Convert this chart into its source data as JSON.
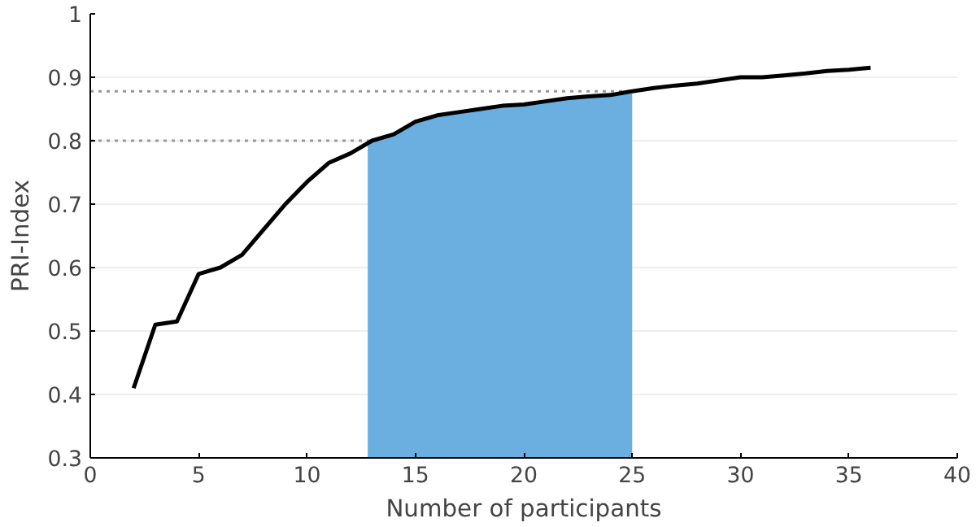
{
  "chart_data": {
    "type": "line",
    "xlabel": "Number of participants",
    "ylabel": "PRI-Index",
    "x": [
      2,
      3,
      4,
      5,
      6,
      7,
      8,
      9,
      10,
      11,
      12,
      13,
      14,
      15,
      16,
      17,
      18,
      19,
      20,
      21,
      22,
      23,
      24,
      25,
      26,
      27,
      28,
      29,
      30,
      31,
      32,
      33,
      34,
      35,
      36
    ],
    "series": [
      {
        "color": "#000000",
        "values": [
          0.41,
          0.51,
          0.515,
          0.59,
          0.6,
          0.62,
          0.66,
          0.7,
          0.735,
          0.765,
          0.78,
          0.8,
          0.81,
          0.83,
          0.84,
          0.845,
          0.85,
          0.855,
          0.857,
          0.862,
          0.867,
          0.87,
          0.872,
          0.878,
          0.883,
          0.887,
          0.89,
          0.895,
          0.9,
          0.9,
          0.903,
          0.906,
          0.91,
          0.912,
          0.915
        ]
      }
    ],
    "xlim": [
      0,
      40
    ],
    "ylim": [
      0.3,
      1
    ],
    "xticks": [
      0,
      5,
      10,
      15,
      20,
      25,
      30,
      35,
      40
    ],
    "yticks": [
      0.3,
      0.4,
      0.5,
      0.6,
      0.7,
      0.8,
      0.9,
      1
    ],
    "grid": "y",
    "marker": "none",
    "line_style": "solid",
    "ref_lines": [
      {
        "axis": "y",
        "value": 0.8,
        "color": "#999999",
        "line_style": "dotted"
      },
      {
        "axis": "y",
        "value": 0.878,
        "color": "#999999",
        "line_style": "dotted"
      }
    ],
    "bands": [
      {
        "axis": "x",
        "from": 12.8,
        "to": 25,
        "color": "#6aafe0"
      }
    ]
  }
}
